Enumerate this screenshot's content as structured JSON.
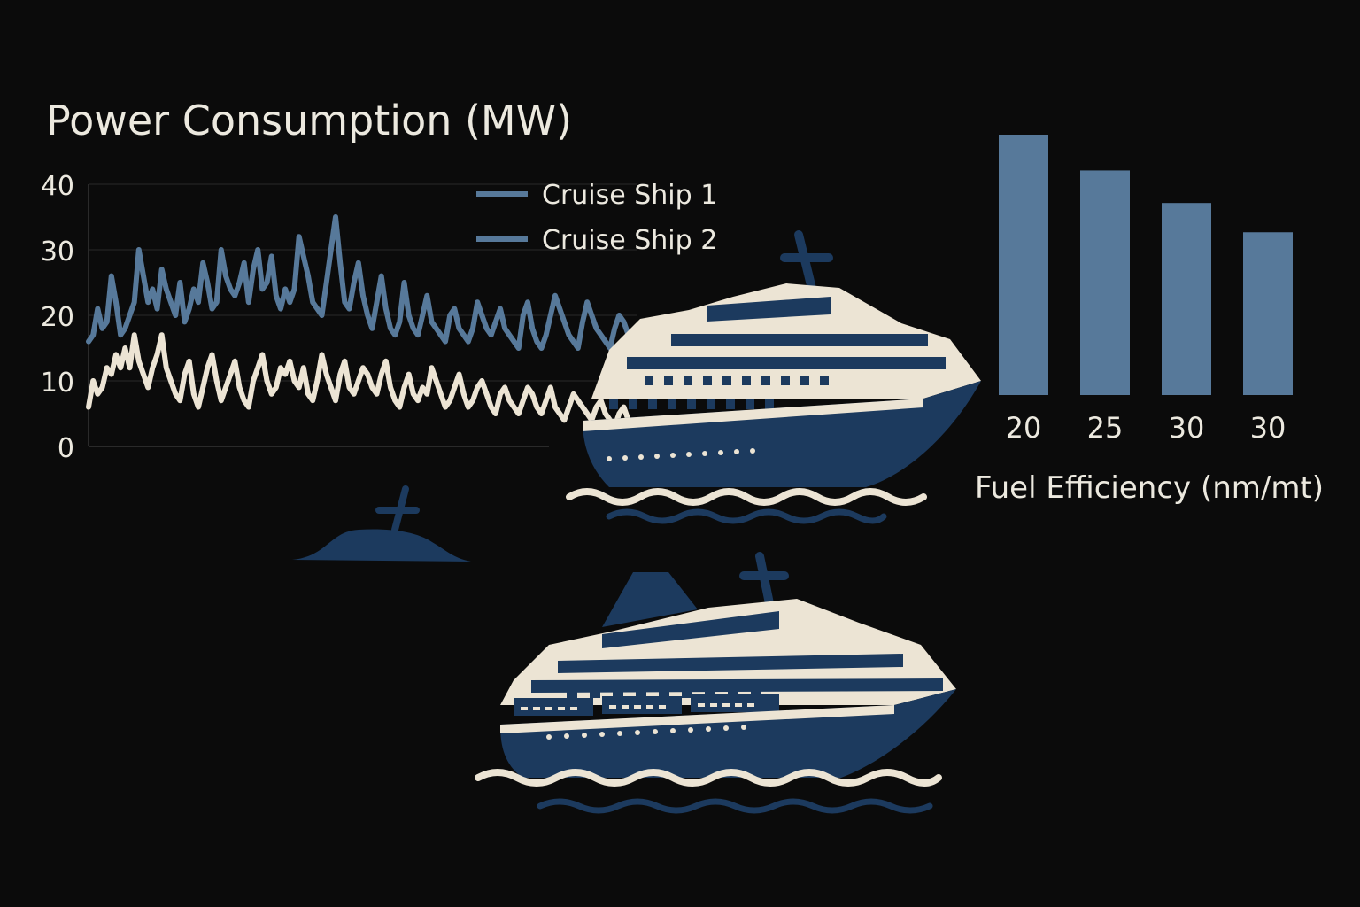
{
  "colors": {
    "background": "#0b0b0b",
    "text": "#ece9df",
    "ship1": "#57799a",
    "ship2": "#ece4d4",
    "bar": "#57799a",
    "navy": "#1c3a5e",
    "cream": "#ece4d4",
    "grid": "#2a2a2a"
  },
  "chart_data": [
    {
      "type": "line",
      "title": "Power Consumption (MW)",
      "xlabel": "",
      "ylabel": "",
      "ylim": [
        0,
        40
      ],
      "yticks": [
        "0",
        "10",
        "20",
        "30",
        "40"
      ],
      "grid": true,
      "legend_placement": "top-right",
      "legend": [
        "Cruise Ship 1",
        "Cruise Ship 2"
      ],
      "x": [
        0,
        1,
        2,
        3,
        4,
        5,
        6,
        7,
        8,
        9,
        10,
        11,
        12,
        13,
        14,
        15,
        16,
        17,
        18,
        19,
        20,
        21,
        22,
        23,
        24,
        25,
        26,
        27,
        28,
        29,
        30,
        31,
        32,
        33,
        34,
        35,
        36,
        37,
        38,
        39,
        40,
        41,
        42,
        43,
        44,
        45,
        46,
        47,
        48,
        49,
        50,
        51,
        52,
        53,
        54,
        55,
        56,
        57,
        58,
        59,
        60,
        61,
        62,
        63,
        64,
        65,
        66,
        67,
        68,
        69,
        70,
        71,
        72,
        73,
        74,
        75,
        76,
        77,
        78,
        79,
        80,
        81,
        82,
        83,
        84,
        85,
        86,
        87,
        88,
        89,
        90,
        91,
        92,
        93,
        94,
        95,
        96,
        97,
        98,
        99,
        100,
        101,
        102,
        103,
        104,
        105,
        106,
        107,
        108,
        109,
        110,
        111,
        112,
        113,
        114,
        115,
        116,
        117,
        118,
        119,
        120
      ],
      "series": [
        {
          "name": "Cruise Ship 1",
          "color": "#57799a",
          "values": [
            16,
            17,
            21,
            18,
            19,
            26,
            22,
            17,
            18,
            20,
            22,
            30,
            26,
            22,
            24,
            21,
            27,
            24,
            22,
            20,
            25,
            19,
            21,
            24,
            22,
            28,
            25,
            21,
            22,
            30,
            26,
            24,
            23,
            25,
            28,
            22,
            27,
            30,
            24,
            25,
            29,
            23,
            21,
            24,
            22,
            24,
            32,
            29,
            26,
            22,
            21,
            20,
            25,
            30,
            35,
            28,
            22,
            21,
            25,
            28,
            23,
            20,
            18,
            22,
            26,
            21,
            18,
            17,
            19,
            25,
            20,
            18,
            17,
            20,
            23,
            19,
            18,
            17,
            16,
            20,
            21,
            18,
            17,
            16,
            18,
            22,
            20,
            18,
            17,
            19,
            21,
            18,
            17,
            16,
            15,
            20,
            22,
            18,
            16,
            15,
            17,
            20,
            23,
            21,
            19,
            17,
            16,
            15,
            19,
            22,
            20,
            18,
            17,
            16,
            15,
            18,
            20,
            19,
            17,
            16,
            15
          ]
        },
        {
          "name": "Cruise Ship 2",
          "color": "#ece4d4",
          "values": [
            6,
            10,
            8,
            9,
            12,
            11,
            14,
            12,
            15,
            12,
            17,
            13,
            11,
            9,
            12,
            14,
            17,
            12,
            10,
            8,
            7,
            11,
            13,
            8,
            6,
            9,
            12,
            14,
            10,
            7,
            9,
            11,
            13,
            9,
            7,
            6,
            10,
            12,
            14,
            10,
            8,
            9,
            12,
            11,
            13,
            10,
            9,
            12,
            8,
            7,
            10,
            14,
            11,
            9,
            7,
            11,
            13,
            9,
            8,
            10,
            12,
            11,
            9,
            8,
            11,
            13,
            9,
            7,
            6,
            9,
            11,
            8,
            7,
            9,
            8,
            12,
            10,
            8,
            6,
            7,
            9,
            11,
            8,
            6,
            7,
            9,
            10,
            8,
            6,
            5,
            8,
            9,
            7,
            6,
            5,
            7,
            9,
            8,
            6,
            5,
            7,
            9,
            6,
            5,
            4,
            6,
            8,
            7,
            6,
            5,
            4,
            6,
            7,
            5,
            4,
            3,
            5,
            6,
            4,
            3,
            2
          ]
        }
      ]
    },
    {
      "type": "bar",
      "title": "",
      "xlabel": "Fuel Efficiency (nm/mt)",
      "ylabel": "",
      "categories": [
        "20",
        "25",
        "30",
        "30"
      ],
      "values": [
        40,
        34.5,
        29.5,
        25
      ],
      "ylim": [
        0,
        40
      ],
      "grid": false
    }
  ],
  "icons": [
    "cruise-ship-icon",
    "cruise-ship-icon",
    "submerged-ship-icon"
  ]
}
